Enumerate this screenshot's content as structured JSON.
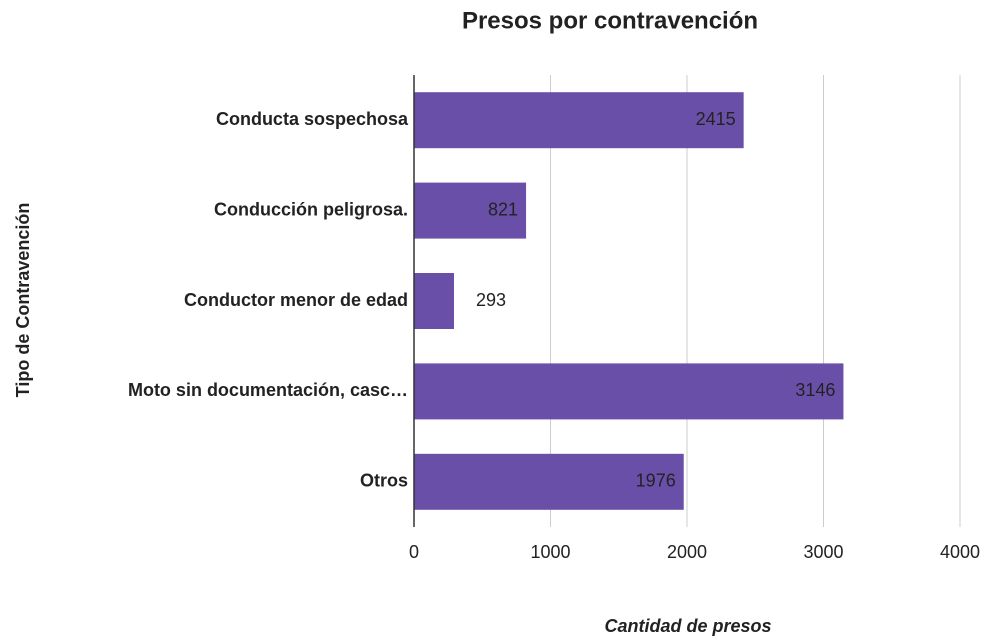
{
  "chart_data": {
    "type": "bar",
    "orientation": "horizontal",
    "title": "Presos por contravención",
    "x_label": "Cantidad de presos",
    "y_label": "Tipo de Contravención",
    "categories": [
      "Conducta sospechosa",
      "Conducción peligrosa.",
      "Conductor menor de edad",
      "Moto sin documentación, casc…",
      "Otros"
    ],
    "values": [
      2415,
      821,
      293,
      3146,
      1976
    ],
    "color": "#6a4fa8",
    "xlim": [
      0,
      4000
    ],
    "xticks": [
      0,
      1000,
      2000,
      3000,
      4000
    ],
    "grid": true
  }
}
